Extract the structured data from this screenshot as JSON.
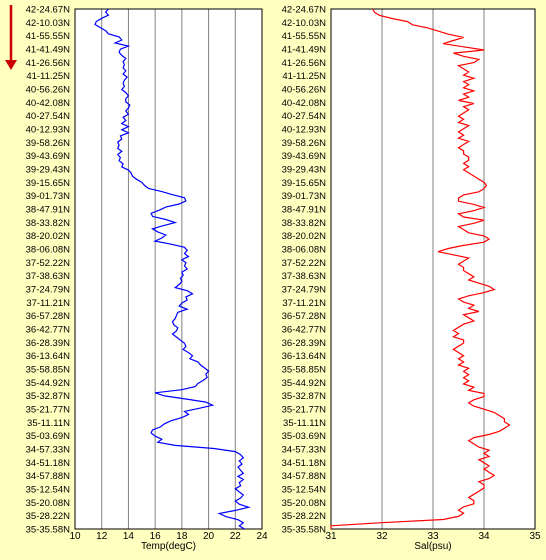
{
  "direction_arrow_icon": "arrow-down-icon",
  "colors": {
    "background": "#ffffc0",
    "plot_background": "#ffffff",
    "grid": "#808080",
    "axis": "#000000",
    "arrow": "#cc0000",
    "temp_line": "#0000ff",
    "sal_line": "#ff0000"
  },
  "latitude_labels": [
    "42-24.67N",
    "42-10.03N",
    "41-55.55N",
    "41-41.49N",
    "41-26.56N",
    "41-11.25N",
    "40-56.26N",
    "40-42.08N",
    "40-27.54N",
    "40-12.93N",
    "39-58.26N",
    "39-43.69N",
    "39-29.43N",
    "39-15.65N",
    "39-01.73N",
    "38-47.91N",
    "38-33.82N",
    "38-20.02N",
    "38-06.08N",
    "37-52.22N",
    "37-38.63N",
    "37-24.79N",
    "37-11.21N",
    "36-57.28N",
    "36-42.77N",
    "36-28.39N",
    "36-13.64N",
    "35-58.85N",
    "35-44.92N",
    "35-32.87N",
    "35-21.77N",
    "35-11.11N",
    "35-03.69N",
    "34-57.33N",
    "34-51.18N",
    "34-57.88N",
    "35-12.54N",
    "35-20.08N",
    "35-28.22N",
    "35-35.58N"
  ],
  "chart_data": [
    {
      "type": "line",
      "xlabel": "Temp(degC)",
      "xlim": [
        10,
        24
      ],
      "xticks": [
        10,
        12,
        14,
        16,
        18,
        20,
        22,
        24
      ],
      "grid": true,
      "series": [
        {
          "color": "#0000ff",
          "values": [
            12.5,
            12.3,
            12.5,
            12.0,
            11.6,
            11.5,
            11.9,
            12.3,
            12.5,
            13.3,
            13.5,
            13.0,
            14.0,
            13.4,
            13.3,
            13.5,
            13.8,
            13.6,
            13.7,
            13.6,
            13.8,
            13.6,
            13.9,
            13.7,
            13.6,
            13.7,
            13.5,
            13.8,
            14.0,
            13.8,
            13.8,
            14.1,
            14.0,
            13.8,
            14.0,
            13.6,
            13.8,
            13.5,
            14.0,
            13.5,
            14.0,
            13.4,
            13.5,
            13.2,
            13.3,
            13.2,
            13.5,
            13.2,
            13.4,
            13.3,
            13.6,
            13.5,
            14.0,
            14.2,
            14.3,
            14.6,
            15.0,
            15.2,
            15.5,
            16.5,
            17.3,
            18.2,
            18.3,
            17.8,
            16.8,
            16.3,
            15.7,
            15.8,
            16.8,
            17.5,
            16.6,
            15.8,
            16.2,
            16.8,
            16.5,
            16.0,
            17.2,
            18.2,
            18.4,
            18.2,
            18.5,
            18.0,
            18.3,
            18.2,
            18.4,
            18.0,
            18.1,
            17.9,
            18.0,
            17.8,
            17.5,
            18.4,
            18.8,
            18.3,
            18.4,
            18.0,
            17.8,
            18.4,
            17.7,
            17.6,
            17.5,
            17.3,
            17.4,
            17.7,
            17.6,
            17.3,
            17.6,
            17.9,
            18.2,
            18.3,
            18.1,
            18.5,
            18.8,
            18.6,
            19.2,
            19.4,
            19.7,
            20.0,
            19.8,
            19.9,
            19.6,
            19.2,
            19.0,
            18.0,
            16.0,
            16.7,
            18.3,
            19.8,
            20.3,
            19.3,
            18.2,
            18.5,
            18.0,
            17.2,
            16.7,
            16.4,
            15.8,
            15.7,
            16.0,
            16.5,
            16.2,
            17.5,
            20.4,
            22.0,
            22.4,
            22.6,
            22.3,
            22.5,
            22.2,
            22.4,
            22.6,
            22.2,
            22.6,
            22.3,
            22.4,
            22.0,
            22.3,
            22.6,
            22.4,
            22.0,
            22.3,
            23.0,
            22.0,
            20.8,
            21.3,
            22.2,
            22.6,
            22.3,
            22.7
          ]
        }
      ]
    },
    {
      "type": "line",
      "xlabel": "Sal(psu)",
      "xlim": [
        31,
        35
      ],
      "xticks": [
        31,
        32,
        33,
        34,
        35
      ],
      "grid": true,
      "series": [
        {
          "color": "#ff0000",
          "values": [
            31.82,
            31.85,
            31.95,
            32.2,
            32.5,
            32.6,
            32.9,
            33.1,
            33.3,
            33.6,
            33.4,
            33.2,
            33.6,
            34.0,
            33.4,
            33.6,
            33.9,
            33.8,
            33.5,
            33.6,
            33.7,
            33.6,
            33.8,
            33.6,
            33.7,
            33.6,
            33.8,
            33.6,
            33.7,
            33.5,
            33.8,
            33.6,
            33.7,
            33.6,
            33.5,
            33.6,
            33.5,
            33.7,
            33.6,
            33.5,
            33.6,
            33.5,
            33.7,
            33.6,
            33.5,
            33.6,
            33.6,
            33.7,
            33.7,
            33.6,
            33.7,
            33.6,
            33.7,
            33.8,
            33.9,
            34.0,
            34.05,
            34.0,
            33.9,
            33.6,
            33.5,
            33.5,
            33.8,
            34.0,
            33.8,
            33.5,
            33.6,
            34.0,
            33.8,
            33.5,
            33.6,
            33.7,
            34.0,
            34.1,
            34.0,
            33.6,
            33.3,
            33.1,
            33.4,
            33.7,
            33.6,
            33.5,
            33.6,
            33.6,
            33.7,
            33.8,
            33.7,
            33.9,
            34.1,
            34.2,
            34.0,
            33.7,
            33.5,
            33.6,
            33.8,
            33.7,
            33.9,
            33.6,
            33.7,
            33.8,
            33.6,
            33.5,
            33.4,
            33.5,
            33.4,
            33.6,
            33.6,
            33.5,
            33.4,
            33.5,
            33.6,
            33.5,
            33.6,
            33.5,
            33.7,
            33.6,
            33.7,
            33.6,
            33.7,
            33.6,
            33.8,
            33.7,
            34.0,
            34.0,
            33.8,
            33.7,
            33.8,
            34.0,
            34.2,
            34.3,
            34.4,
            34.4,
            34.5,
            34.4,
            34.3,
            34.1,
            33.8,
            33.7,
            33.8,
            33.9,
            34.1,
            34.0,
            34.1,
            33.9,
            34.0,
            34.1,
            34.0,
            34.1,
            34.2,
            34.1,
            33.9,
            34.0,
            34.0,
            33.9,
            33.8,
            33.7,
            33.8,
            33.8,
            33.6,
            33.5,
            33.6,
            33.5,
            33.2,
            32.0,
            31.0,
            30.95
          ]
        }
      ]
    }
  ]
}
